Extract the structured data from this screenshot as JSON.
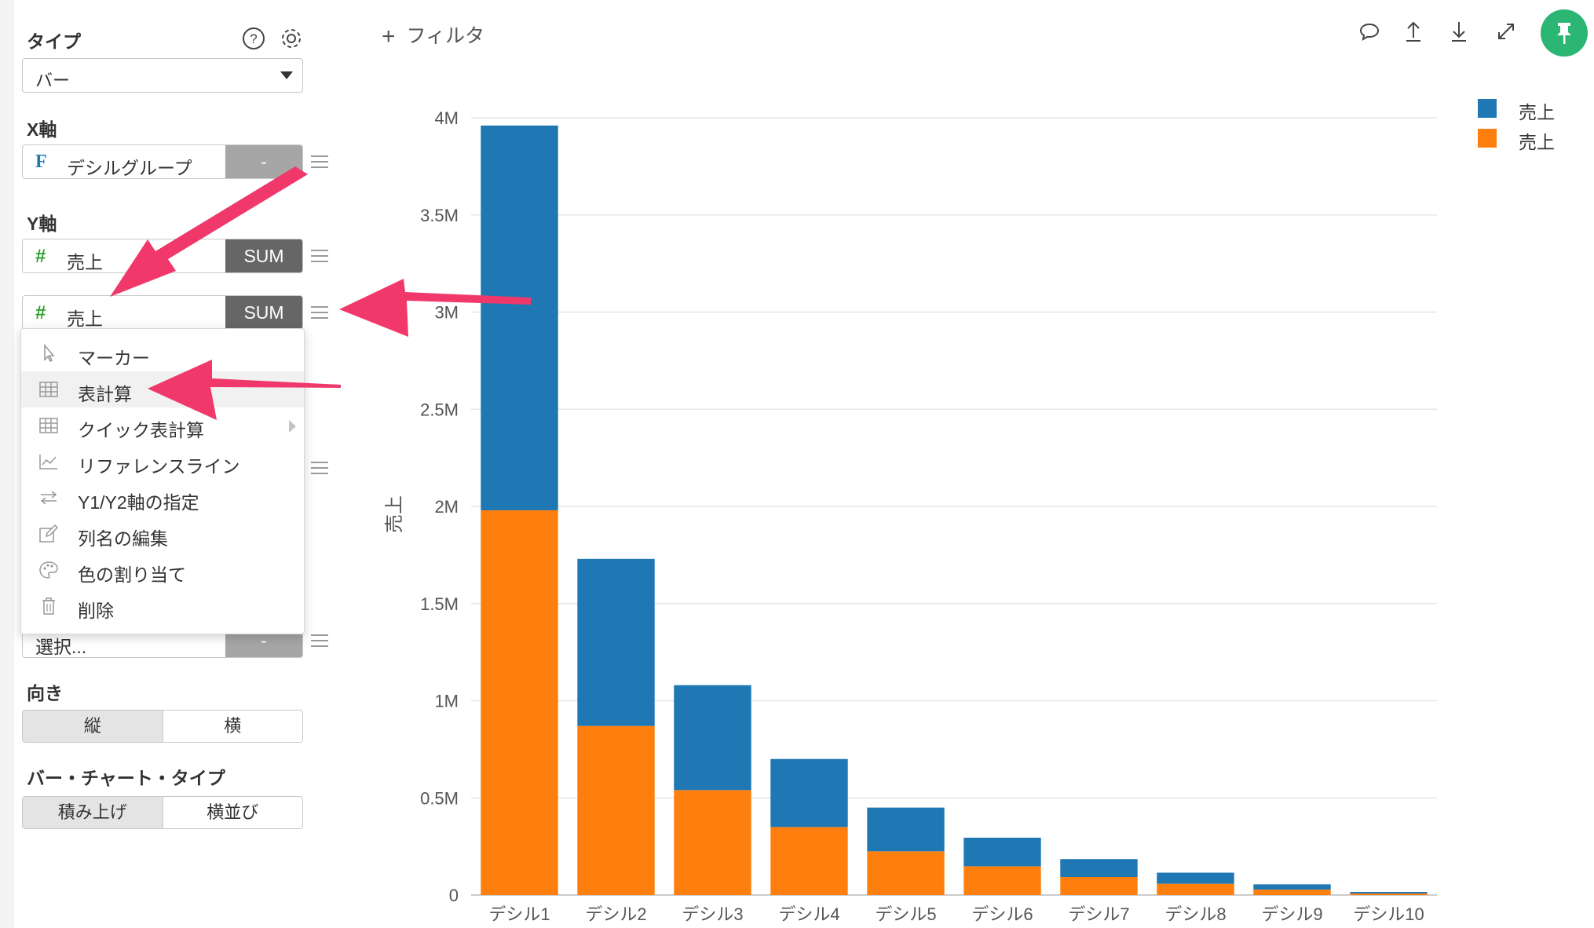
{
  "panel": {
    "type_label": "タイプ",
    "type_value": "バー",
    "x_axis_label": "X軸",
    "x_field": {
      "type_icon": "F",
      "name": "デシルグループ",
      "agg": "-"
    },
    "y_axis_label": "Y軸",
    "y_fields": [
      {
        "type_icon": "#",
        "name": "売上",
        "agg": "SUM"
      },
      {
        "type_icon": "#",
        "name": "売上",
        "agg": "SUM"
      }
    ],
    "color_field": {
      "name": "選択...",
      "agg": "-"
    },
    "orientation_label": "向き",
    "orientation_options": [
      "縦",
      "横"
    ],
    "bar_type_label": "バー・チャート・タイプ",
    "bar_type_options": [
      "積み上げ",
      "横並び"
    ]
  },
  "context_menu": {
    "items": [
      {
        "label": "マーカー",
        "icon": "cursor-icon"
      },
      {
        "label": "表計算",
        "icon": "table-icon"
      },
      {
        "label": "クイック表計算",
        "icon": "table-icon"
      },
      {
        "label": "リファレンスライン",
        "icon": "line-chart-icon"
      },
      {
        "label": "Y1/Y2軸の指定",
        "icon": "swap-icon"
      },
      {
        "label": "列名の編集",
        "icon": "edit-icon"
      },
      {
        "label": "色の割り当て",
        "icon": "palette-icon"
      },
      {
        "label": "削除",
        "icon": "trash-icon"
      }
    ]
  },
  "toolbar": {
    "filter_label": "フィルタ"
  },
  "colors": {
    "blue": "#1f77b4",
    "orange": "#ff7f0e",
    "arrow": "#f0386b",
    "pin": "#2bb673"
  },
  "chart_data": {
    "type": "bar",
    "stacked": true,
    "categories": [
      "デシル1",
      "デシル2",
      "デシル3",
      "デシル4",
      "デシル5",
      "デシル6",
      "デシル7",
      "デシル8",
      "デシル9",
      "デシル10"
    ],
    "series": [
      {
        "name": "売上",
        "color": "#ff7f0e",
        "values": [
          1980000,
          870000,
          540000,
          350000,
          225000,
          148000,
          93000,
          58000,
          28000,
          8000
        ]
      },
      {
        "name": "売上",
        "color": "#1f77b4",
        "values": [
          1980000,
          860000,
          540000,
          350000,
          225000,
          147000,
          92000,
          57000,
          27000,
          8000
        ]
      }
    ],
    "ylabel": "売上",
    "ylim": [
      0,
      4000000
    ],
    "yticks": [
      0,
      500000,
      1000000,
      1500000,
      2000000,
      2500000,
      3000000,
      3500000,
      4000000
    ],
    "ytick_labels": [
      "0",
      "0.5M",
      "1M",
      "1.5M",
      "2M",
      "2.5M",
      "3M",
      "3.5M",
      "4M"
    ],
    "grid": true,
    "legend": "top-right"
  }
}
